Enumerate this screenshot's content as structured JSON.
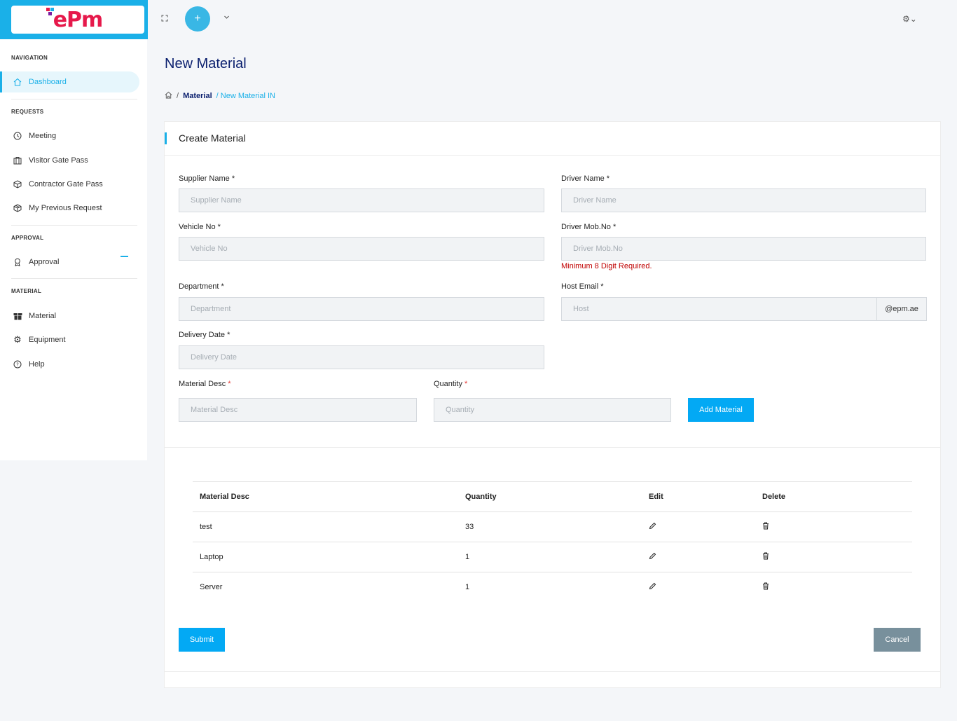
{
  "brand": {
    "logo_text": "ePm",
    "colors": {
      "primary": "#1ab0e8",
      "logo": "#e6194b"
    }
  },
  "sidebar": {
    "sections": [
      {
        "heading": "NAVIGATION",
        "items": [
          {
            "label": "Dashboard",
            "icon": "home-icon",
            "active": true
          }
        ]
      },
      {
        "heading": "REQUESTS",
        "items": [
          {
            "label": "Meeting",
            "icon": "clock-icon"
          },
          {
            "label": "Visitor Gate Pass",
            "icon": "id-card-icon"
          },
          {
            "label": "Contractor Gate Pass",
            "icon": "cube-icon"
          },
          {
            "label": "My Previous Request",
            "icon": "box-icon"
          }
        ]
      },
      {
        "heading": "APPROVAL",
        "items": [
          {
            "label": "Approval",
            "icon": "award-icon"
          }
        ]
      },
      {
        "heading": "MATERIAL",
        "items": [
          {
            "label": "Material",
            "icon": "gift-icon"
          },
          {
            "label": "Equipment",
            "icon": "gears-icon"
          },
          {
            "label": "Help",
            "icon": "help-icon"
          }
        ]
      }
    ]
  },
  "topbar": {
    "plus": "+",
    "chevron": "⌄",
    "gear": "⚙⌄"
  },
  "page": {
    "title": "New Material",
    "breadcrumb": {
      "sep": "/",
      "material": "Material",
      "current": "/ New Material IN"
    }
  },
  "form": {
    "card_title": "Create Material",
    "supplier_name": {
      "label": "Supplier Name *",
      "placeholder": "Supplier Name",
      "value": ""
    },
    "driver_name": {
      "label": "Driver Name *",
      "placeholder": "Driver Name",
      "value": ""
    },
    "vehicle_no": {
      "label": "Vehicle No *",
      "placeholder": "Vehicle No",
      "value": ""
    },
    "driver_mob": {
      "label": "Driver Mob.No *",
      "placeholder": "Driver Mob.No",
      "value": "",
      "error": "Minimum 8 Digit Required."
    },
    "department": {
      "label": "Department *",
      "placeholder": "Department",
      "value": ""
    },
    "host_email": {
      "label": "Host Email *",
      "placeholder": "Host",
      "value": "",
      "suffix": "@epm.ae"
    },
    "delivery_date": {
      "label": "Delivery Date *",
      "placeholder": "Delivery Date",
      "value": ""
    },
    "material_desc": {
      "label": "Material Desc ",
      "req": "*",
      "placeholder": "Material Desc",
      "value": ""
    },
    "quantity": {
      "label": "Quantity ",
      "req": "*",
      "placeholder": "Quantity",
      "value": ""
    },
    "add_material_label": "Add Material"
  },
  "table": {
    "headers": [
      "Material Desc",
      "Quantity",
      "Edit",
      "Delete"
    ],
    "rows": [
      {
        "desc": "test",
        "qty": "33"
      },
      {
        "desc": "Laptop",
        "qty": "1"
      },
      {
        "desc": "Server",
        "qty": "1"
      }
    ],
    "edit_glyph": "✎",
    "delete_glyph": "🗑"
  },
  "actions": {
    "submit": "Submit",
    "cancel": "Cancel"
  }
}
